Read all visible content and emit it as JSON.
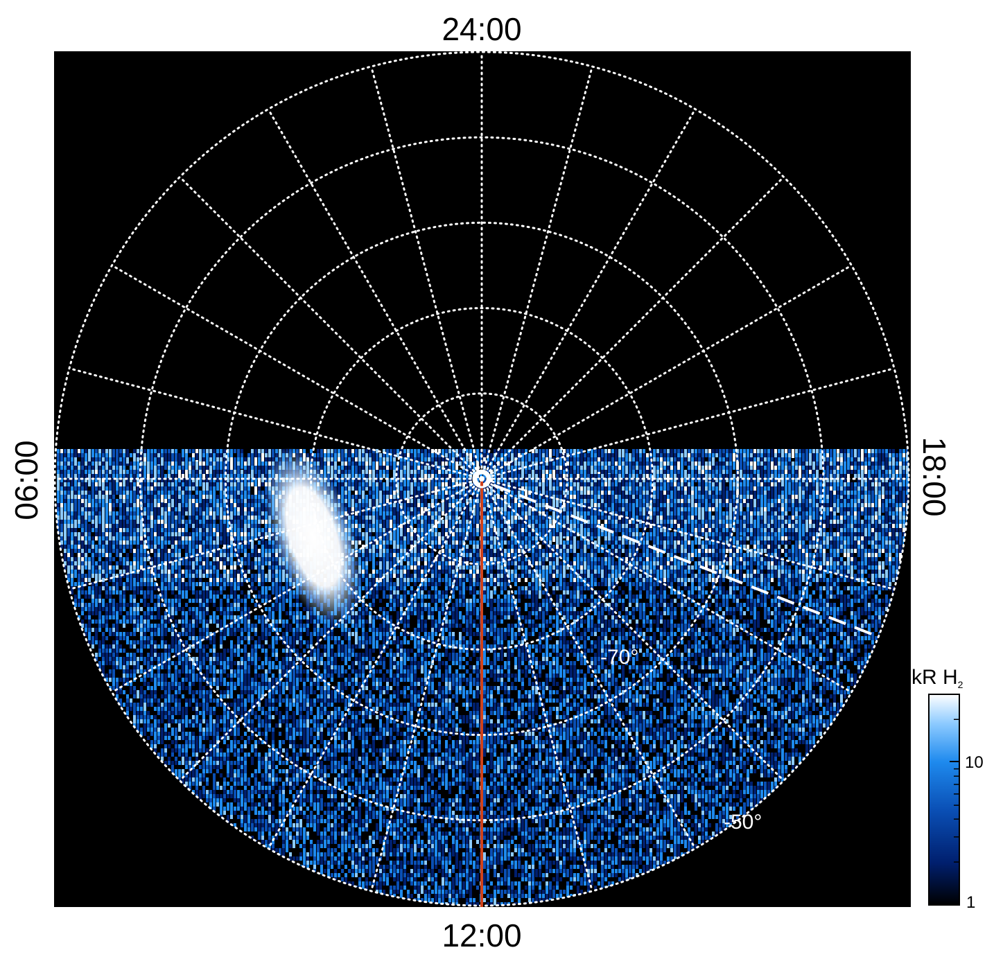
{
  "chart_data": {
    "type": "heatmap",
    "projection": "polar, south pole at center, local time azimuth",
    "local_time_labels": {
      "top": "24:00",
      "bottom": "12:00",
      "left": "06:00",
      "right": "18:00"
    },
    "latitude_labels": [
      "-70°",
      "-50°"
    ],
    "latitude_circles_deg": [
      -80,
      -70,
      -60,
      -50,
      -40
    ],
    "meridian_spacing_hours": 1,
    "coverage": "southern (noon-side) half of disk only; night side blank",
    "bright_feature": "bright auroral patch near 08-09 LT, ~-70° to -75°",
    "colorbar": {
      "title": "kR H",
      "title_subscript": "2",
      "scale": "log",
      "range": [
        1,
        30
      ],
      "ticks": [
        1,
        10
      ],
      "tick_labels": [
        "1",
        "10"
      ]
    },
    "overlays": {
      "noon_meridian_line": "red line along 12:00",
      "dashed_line": "white dashed line from pole toward ~16 LT"
    }
  },
  "colors": {
    "background": "#000000",
    "grid": "#ffffff",
    "meridian_line": "#d0421b",
    "colormap": [
      "#000000",
      "#001f6e",
      "#0a4fb5",
      "#1e8aee",
      "#8ccaff",
      "#ffffff"
    ]
  }
}
